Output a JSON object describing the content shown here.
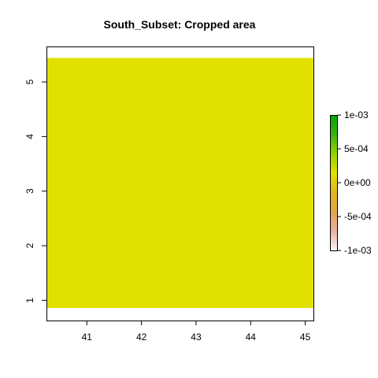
{
  "chart_data": {
    "type": "heatmap",
    "title": "South_Subset: Cropped area",
    "xlabel": "",
    "ylabel": "",
    "xlim": [
      40.26,
      45.15
    ],
    "ylim": [
      0.63,
      5.65
    ],
    "x_ticks": [
      41,
      42,
      43,
      44,
      45
    ],
    "y_ticks": [
      1,
      2,
      3,
      4,
      5
    ],
    "raster": {
      "xmin": 40.26,
      "xmax": 45.15,
      "ymin": 0.86,
      "ymax": 5.44,
      "value": 0,
      "color": "#E1E100"
    },
    "legend": {
      "placement": "right",
      "ticks": [
        {
          "value": 0.001,
          "label": "1e-03"
        },
        {
          "value": 0.0005,
          "label": "5e-04"
        },
        {
          "value": 0,
          "label": "0e+00"
        },
        {
          "value": -0.0005,
          "label": "-5e-04"
        },
        {
          "value": -0.001,
          "label": "-1e-03"
        }
      ],
      "range": [
        -0.001,
        0.001
      ],
      "colors": [
        "#F4F4F4",
        "#EBB1A3",
        "#E3A54C",
        "#E1B51E",
        "#E1E100",
        "#94D103",
        "#3CB00E",
        "#00A600"
      ]
    }
  }
}
